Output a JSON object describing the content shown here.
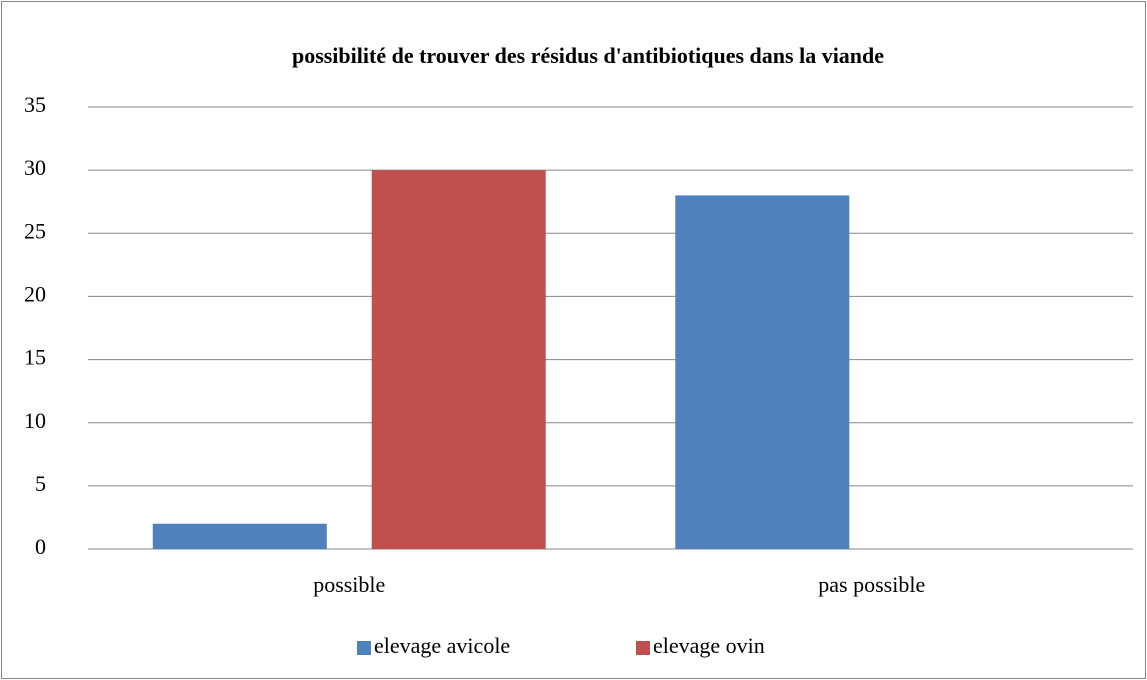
{
  "chart_data": {
    "type": "bar",
    "title": "possibilité de trouver des résidus d'antibiotiques dans la viande",
    "categories": [
      "possible",
      "pas possible"
    ],
    "series": [
      {
        "name": "elevage avicole",
        "color": "#4f81bd",
        "values": [
          2,
          28
        ]
      },
      {
        "name": "elevage ovin",
        "color": "#c0504d",
        "values": [
          30,
          0
        ]
      }
    ],
    "ylim": [
      0,
      35
    ],
    "yticks": [
      0,
      5,
      10,
      15,
      20,
      25,
      30,
      35
    ],
    "grid": true,
    "legend": "bottom"
  }
}
